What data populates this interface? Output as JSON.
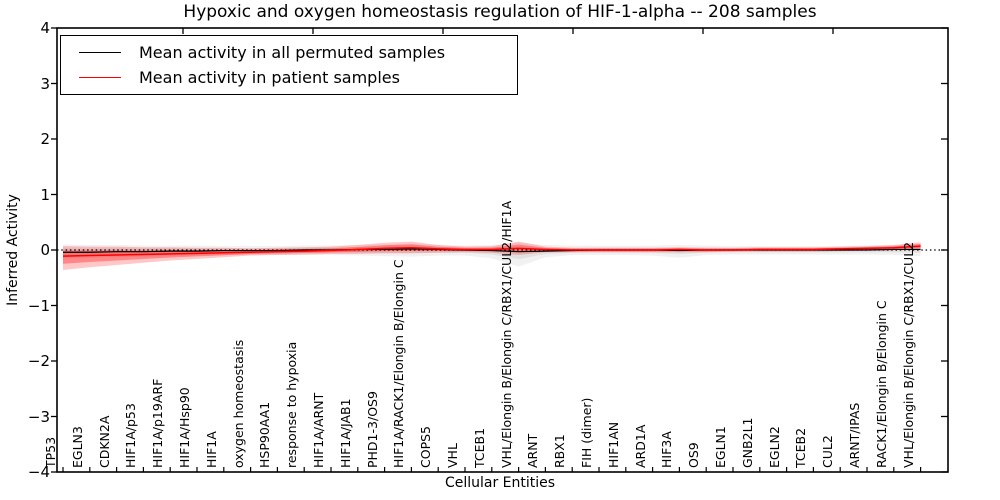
{
  "title": "Hypoxic and oxygen homeostasis regulation of HIF-1-alpha -- 208 samples",
  "legend": {
    "items": [
      {
        "label": "Mean activity in all permuted samples",
        "color": "#000000"
      },
      {
        "label": "Mean activity in patient samples",
        "color": "#ff0000"
      }
    ]
  },
  "axes": {
    "ylabel": "Inferred Activity",
    "xlabel": "Cellular Entities",
    "ytick_labels": [
      "4",
      "3",
      "2",
      "1",
      "0",
      "−1",
      "−2",
      "−3",
      "−4"
    ],
    "ytick_values": [
      4,
      3,
      2,
      1,
      0,
      -1,
      -2,
      -3,
      -4
    ],
    "ylim": [
      -4,
      4
    ]
  },
  "chart_data": {
    "type": "line",
    "title": "Hypoxic and oxygen homeostasis regulation of HIF-1-alpha -- 208 samples",
    "xlabel": "Cellular Entities",
    "ylabel": "Inferred Activity",
    "ylim": [
      -4,
      4
    ],
    "grid": false,
    "legend_position": "upper left",
    "zero_reference_line": 0,
    "categories": [
      "TP53",
      "EGLN3",
      "CDKN2A",
      "HIF1A/p53",
      "HIF1A/p19ARF",
      "HIF1A/Hsp90",
      "HIF1A",
      "oxygen homeostasis",
      "HSP90AA1",
      "response to hypoxia",
      "HIF1A/ARNT",
      "HIF1A/JAB1",
      "PHD1-3/OS9",
      "HIF1A/RACK1/Elongin B/Elongin C",
      "COPS5",
      "VHL",
      "TCEB1",
      "VHL/Elongin B/Elongin C/RBX1/CUL2/HIF1A",
      "ARNT",
      "RBX1",
      "FIH (dimer)",
      "HIF1AN",
      "ARD1A",
      "HIF3A",
      "OS9",
      "EGLN1",
      "GNB2L1",
      "EGLN2",
      "TCEB2",
      "CUL2",
      "ARNT/IPAS",
      "RACK1/Elongin B/Elongin C",
      "VHL/Elongin B/Elongin C/RBX1/CUL2"
    ],
    "series": [
      {
        "name": "Mean activity in all permuted samples",
        "color": "#000000",
        "band_color": "#bdbdbd",
        "values": [
          -0.04,
          -0.04,
          -0.03,
          -0.03,
          -0.02,
          -0.02,
          -0.01,
          -0.01,
          -0.01,
          0,
          0,
          0.01,
          0.01,
          0.02,
          0.01,
          0,
          -0.01,
          -0.03,
          -0.02,
          -0.01,
          0,
          0,
          0,
          -0.01,
          0,
          0,
          0,
          0,
          0,
          0,
          0,
          0.01,
          0.01
        ],
        "band_upper": [
          0.1,
          0.09,
          0.09,
          0.08,
          0.08,
          0.08,
          0.07,
          0.07,
          0.07,
          0.08,
          0.08,
          0.09,
          0.1,
          0.11,
          0.09,
          0.08,
          0.09,
          0.13,
          0.09,
          0.08,
          0.08,
          0.08,
          0.08,
          0.09,
          0.08,
          0.07,
          0.07,
          0.07,
          0.07,
          0.07,
          0.08,
          0.09,
          0.11
        ],
        "band_lower": [
          -0.15,
          -0.14,
          -0.13,
          -0.12,
          -0.11,
          -0.1,
          -0.09,
          -0.09,
          -0.09,
          -0.09,
          -0.09,
          -0.1,
          -0.11,
          -0.12,
          -0.1,
          -0.1,
          -0.15,
          -0.3,
          -0.13,
          -0.09,
          -0.09,
          -0.09,
          -0.1,
          -0.14,
          -0.09,
          -0.08,
          -0.08,
          -0.08,
          -0.08,
          -0.08,
          -0.08,
          -0.09,
          -0.11
        ]
      },
      {
        "name": "Mean activity in patient samples",
        "color": "#ff0000",
        "band_color": "#ff0000",
        "values": [
          -0.11,
          -0.1,
          -0.09,
          -0.08,
          -0.07,
          -0.06,
          -0.05,
          -0.04,
          -0.03,
          -0.02,
          -0.01,
          0.01,
          0.03,
          0.04,
          0.02,
          0.01,
          0.01,
          0.03,
          0.01,
          0,
          0,
          0,
          0,
          0.01,
          0,
          0,
          0.01,
          0.01,
          0.01,
          0.02,
          0.03,
          0.04,
          0.07
        ],
        "band_upper": [
          0.07,
          0.06,
          0.06,
          0.05,
          0.05,
          0.04,
          0.04,
          0.03,
          0.04,
          0.05,
          0.06,
          0.09,
          0.13,
          0.15,
          0.09,
          0.06,
          0.07,
          0.15,
          0.06,
          0.04,
          0.04,
          0.04,
          0.04,
          0.05,
          0.04,
          0.04,
          0.05,
          0.05,
          0.05,
          0.06,
          0.07,
          0.09,
          0.14
        ],
        "band_lower": [
          -0.36,
          -0.31,
          -0.27,
          -0.23,
          -0.19,
          -0.16,
          -0.13,
          -0.1,
          -0.09,
          -0.08,
          -0.07,
          -0.07,
          -0.06,
          -0.06,
          -0.05,
          -0.04,
          -0.05,
          -0.09,
          -0.04,
          -0.04,
          -0.04,
          -0.04,
          -0.04,
          -0.04,
          -0.04,
          -0.03,
          -0.03,
          -0.03,
          -0.03,
          -0.02,
          -0.01,
          0.0,
          0.01
        ]
      }
    ]
  }
}
